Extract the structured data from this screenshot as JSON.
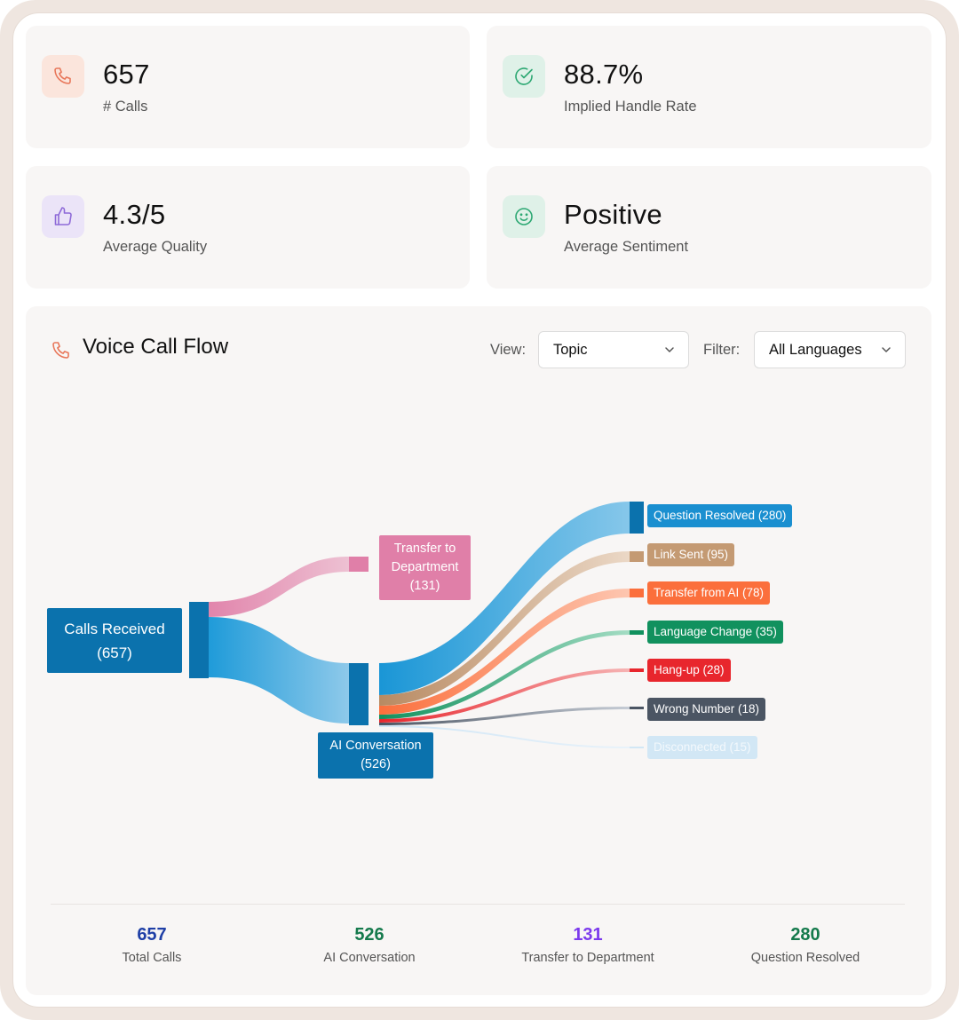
{
  "stats": [
    {
      "value": "657",
      "label": "# Calls",
      "icon": "phone-icon",
      "icon_color": "#e8775a",
      "icon_bg": "#fbe5dc"
    },
    {
      "value": "88.7%",
      "label": "Implied Handle Rate",
      "icon": "check-circle-icon",
      "icon_color": "#2da873",
      "icon_bg": "#dff1e8"
    },
    {
      "value": "4.3/5",
      "label": "Average Quality",
      "icon": "thumbs-up-icon",
      "icon_color": "#8e6ad8",
      "icon_bg": "#ebe4f8"
    },
    {
      "value": "Positive",
      "label": "Average Sentiment",
      "icon": "smile-icon",
      "icon_color": "#2da873",
      "icon_bg": "#dff1e8"
    }
  ],
  "flow": {
    "title": "Voice Call Flow",
    "view_label": "View:",
    "view_value": "Topic",
    "filter_label": "Filter:",
    "filter_value": "All Languages"
  },
  "sankey": {
    "source": {
      "name": "Calls Received",
      "value": "(657)",
      "color": "#0b72ad"
    },
    "middle": [
      {
        "name": "Transfer to Department",
        "name_line1": "Transfer to",
        "name_line2": "Department",
        "value": "(131)",
        "color": "#e07fa8"
      },
      {
        "name": "AI Conversation",
        "value": "(526)",
        "color": "#0b72ad"
      }
    ],
    "outcomes": [
      {
        "label": "Question Resolved (280)",
        "value": 280,
        "color": "#1a8fd0"
      },
      {
        "label": "Link Sent (95)",
        "value": 95,
        "color": "#c49a73"
      },
      {
        "label": "Transfer from AI (78)",
        "value": 78,
        "color": "#fb6f3c"
      },
      {
        "label": "Language Change (35)",
        "value": 35,
        "color": "#11915e"
      },
      {
        "label": "Hang-up (28)",
        "value": 28,
        "color": "#e8262d"
      },
      {
        "label": "Wrong Number (18)",
        "value": 18,
        "color": "#4b5563"
      },
      {
        "label": "Disconnected (15)",
        "value": 15,
        "color": "#d2e7f5"
      }
    ]
  },
  "summary": [
    {
      "value": "657",
      "label": "Total Calls",
      "color": "#1f3fa6"
    },
    {
      "value": "526",
      "label": "AI Conversation",
      "color": "#157a4c"
    },
    {
      "value": "131",
      "label": "Transfer to Department",
      "color": "#7c3aed"
    },
    {
      "value": "280",
      "label": "Question Resolved",
      "color": "#157a4c"
    }
  ]
}
